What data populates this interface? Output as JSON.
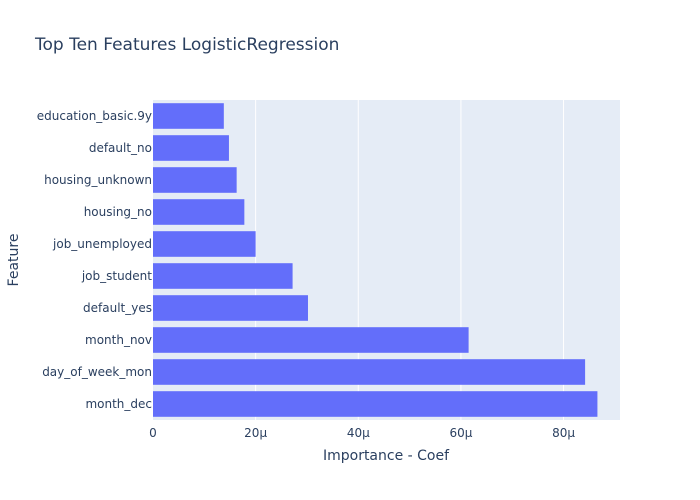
{
  "chart_data": {
    "type": "bar",
    "orientation": "horizontal",
    "title": "Top Ten Features LogisticRegression",
    "xlabel": "Importance - Coef",
    "ylabel": "Feature",
    "categories": [
      "month_dec",
      "day_of_week_mon",
      "month_nov",
      "default_yes",
      "job_student",
      "job_unemployed",
      "housing_no",
      "housing_unknown",
      "default_no",
      "education_basic.9y"
    ],
    "values": [
      8.66e-05,
      8.42e-05,
      6.15e-05,
      3.02e-05,
      2.72e-05,
      2e-05,
      1.78e-05,
      1.63e-05,
      1.48e-05,
      1.38e-05
    ],
    "xlim": [
      0,
      9.1e-05
    ],
    "xticks": [
      0,
      2e-05,
      4e-05,
      6e-05,
      8e-05
    ],
    "xtick_labels": [
      "0",
      "20μ",
      "40μ",
      "60μ",
      "80μ"
    ],
    "grid": true,
    "legend": "none",
    "colors": {
      "bar": "#636efa",
      "plot_background": "#e5ecf6",
      "grid": "#ffffff",
      "text": "#2a3f5f"
    }
  }
}
